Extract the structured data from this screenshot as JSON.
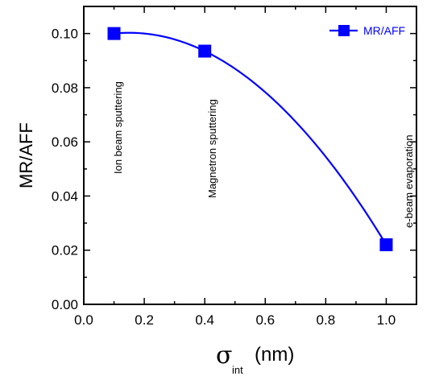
{
  "chart_data": {
    "type": "line",
    "xlabel_symbol": "σ",
    "xlabel_subscript": "int",
    "xlabel_unit": "(nm)",
    "ylabel": "MR/AFF",
    "xlim": [
      0.0,
      1.1
    ],
    "ylim": [
      0.0,
      0.11
    ],
    "xticks": [
      "0.0",
      "0.2",
      "0.4",
      "0.6",
      "0.8",
      "1.0"
    ],
    "yticks": [
      "0.00",
      "0.02",
      "0.04",
      "0.06",
      "0.08",
      "0.10"
    ],
    "grid": false,
    "legend_position": "top-right",
    "series": [
      {
        "name": "MR/AFF",
        "color": "#0000ff",
        "marker": "square",
        "x": [
          0.1,
          0.4,
          1.0
        ],
        "y": [
          0.1,
          0.0935,
          0.022
        ]
      }
    ],
    "annotations": [
      "Ion beam sputtering",
      "Magnetron sputtering",
      "e-beam evaporation"
    ]
  }
}
